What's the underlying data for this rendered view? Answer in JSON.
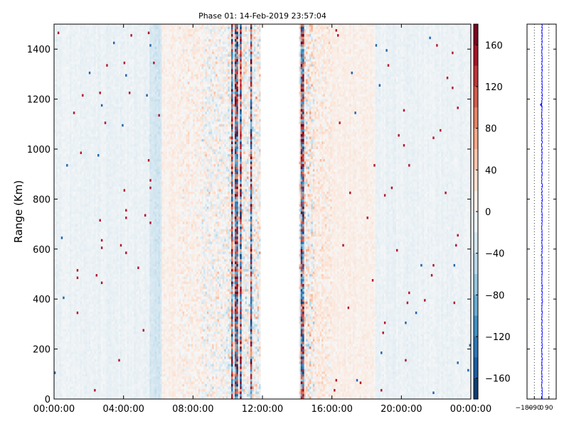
{
  "chart_data": {
    "type": "heatmap",
    "title": "Phase 01: 14-Feb-2019 23:57:04",
    "xlabel": "",
    "ylabel": "Range (Km)",
    "x_ticks": [
      "00:00:00",
      "04:00:00",
      "08:00:00",
      "12:00:00",
      "16:00:00",
      "20:00:00",
      "00:00:00"
    ],
    "x_range_hours": [
      0,
      24
    ],
    "y_ticks": [
      0,
      200,
      400,
      600,
      800,
      1000,
      1200,
      1400
    ],
    "ylim": [
      0,
      1500
    ],
    "no_data_gap_hours": [
      11.9,
      14.1
    ],
    "colormap": "RdBu_r",
    "colorbar": {
      "ticks": [
        "160",
        "120",
        "80",
        "40",
        "0",
        "−40",
        "−80",
        "−120",
        "−160"
      ],
      "vmin": -180,
      "vmax": 180
    },
    "activity_profile": [
      {
        "start_h": 0,
        "end_h": 5.5,
        "noise": 0.12,
        "bias": -0.06
      },
      {
        "start_h": 5.5,
        "end_h": 6.2,
        "noise": 0.15,
        "bias": -0.18
      },
      {
        "start_h": 6.2,
        "end_h": 7.2,
        "noise": 0.22,
        "bias": 0.06
      },
      {
        "start_h": 7.2,
        "end_h": 8.5,
        "noise": 0.4,
        "bias": 0.05
      },
      {
        "start_h": 8.5,
        "end_h": 10.0,
        "noise": 0.65,
        "bias": 0.0
      },
      {
        "start_h": 10.0,
        "end_h": 11.9,
        "noise": 0.9,
        "bias": 0.0
      },
      {
        "start_h": 14.1,
        "end_h": 15.0,
        "noise": 0.95,
        "bias": 0.05
      },
      {
        "start_h": 15.0,
        "end_h": 16.0,
        "noise": 0.45,
        "bias": 0.08
      },
      {
        "start_h": 16.0,
        "end_h": 18.5,
        "noise": 0.18,
        "bias": 0.06
      },
      {
        "start_h": 18.5,
        "end_h": 24,
        "noise": 0.12,
        "bias": -0.06
      }
    ],
    "side_panel": {
      "x_ticks": [
        "−180",
        "−90",
        "0",
        "90"
      ],
      "xlim": [
        -180,
        180
      ],
      "series": "blue"
    }
  }
}
